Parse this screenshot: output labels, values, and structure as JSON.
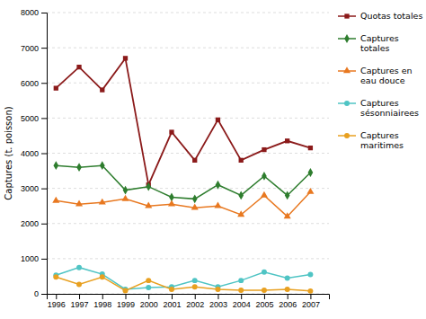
{
  "chart_data": {
    "type": "line",
    "ylabel": "Captures (t. poisson)",
    "x": [
      1996,
      1997,
      1998,
      1999,
      2000,
      2001,
      2002,
      2003,
      2004,
      2005,
      2006,
      2007
    ],
    "xlim": [
      1995.6,
      2007.8
    ],
    "xticks": [
      1996,
      1997,
      1998,
      1999,
      2000,
      2001,
      2002,
      2003,
      2004,
      2005,
      2006,
      2007
    ],
    "ylim": [
      0,
      8000
    ],
    "yticks": [
      0,
      1000,
      2000,
      3000,
      4000,
      5000,
      6000,
      7000,
      8000
    ],
    "grid": true,
    "legend": "right",
    "series": [
      {
        "name": "Quotas totales",
        "color": "#8B1A1A",
        "marker": "square",
        "values": [
          5850,
          6450,
          5800,
          6700,
          3100,
          4600,
          3800,
          4950,
          3800,
          4100,
          4350,
          4150
        ]
      },
      {
        "name": "Captures\ntotales",
        "color": "#2E7D2E",
        "marker": "diamond",
        "values": [
          3650,
          3600,
          3650,
          2950,
          3050,
          2750,
          2700,
          3100,
          2800,
          3350,
          2800,
          3450
        ]
      },
      {
        "name": "Captures en\neau douce",
        "color": "#E87820",
        "marker": "triangle",
        "values": [
          2650,
          2550,
          2600,
          2700,
          2500,
          2550,
          2450,
          2500,
          2250,
          2800,
          2200,
          2900
        ]
      },
      {
        "name": "Captures\nsésonniairees",
        "color": "#4FC4C4",
        "marker": "circle",
        "values": [
          530,
          750,
          560,
          130,
          180,
          200,
          380,
          200,
          380,
          620,
          450,
          550
        ]
      },
      {
        "name": "Captures\nmaritimes",
        "color": "#E8A020",
        "marker": "circle",
        "values": [
          480,
          270,
          480,
          90,
          380,
          130,
          200,
          130,
          100,
          100,
          130,
          80
        ]
      }
    ]
  }
}
